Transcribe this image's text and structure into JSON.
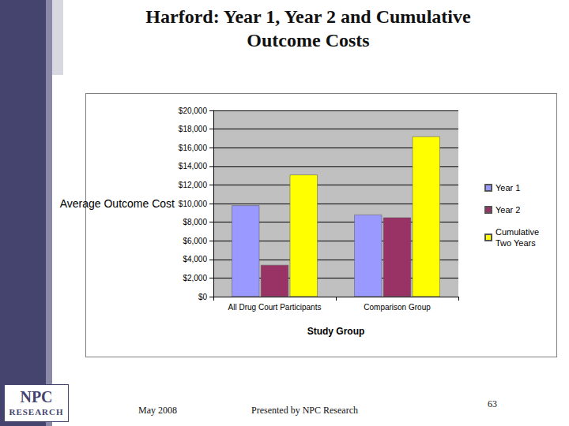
{
  "slide": {
    "title": "Harford: Year 1, Year 2 and Cumulative Outcome Costs",
    "footer_left": "May 2008",
    "footer_center": "Presented by NPC Research",
    "page_number": "63",
    "logo": [
      "NPC",
      "RESEARCH"
    ]
  },
  "chart_data": {
    "type": "bar",
    "x_label": "Study Group",
    "y_label": "Average Outcome Cost",
    "categories": [
      "All Drug Court Participants",
      "Comparison Group"
    ],
    "series": [
      {
        "name": "Year 1",
        "color": "#9999ff",
        "values": [
          9800,
          8800
        ]
      },
      {
        "name": "Year 2",
        "color": "#993366",
        "values": [
          3400,
          8500
        ]
      },
      {
        "name": "Cumulative Two Years",
        "color": "#ffff00",
        "values": [
          13100,
          17200
        ]
      }
    ],
    "ylim": [
      0,
      20000
    ],
    "yticks": [
      {
        "value": 0,
        "label": "$0"
      },
      {
        "value": 2000,
        "label": "$2,000"
      },
      {
        "value": 4000,
        "label": "$4,000"
      },
      {
        "value": 6000,
        "label": "$6,000"
      },
      {
        "value": 8000,
        "label": "$8,000"
      },
      {
        "value": 10000,
        "label": "$10,000"
      },
      {
        "value": 12000,
        "label": "$12,000"
      },
      {
        "value": 14000,
        "label": "$14,000"
      },
      {
        "value": 16000,
        "label": "$16,000"
      },
      {
        "value": 18000,
        "label": "$18,000"
      },
      {
        "value": 20000,
        "label": "$20,000"
      }
    ],
    "grid": true,
    "legend": "right"
  }
}
